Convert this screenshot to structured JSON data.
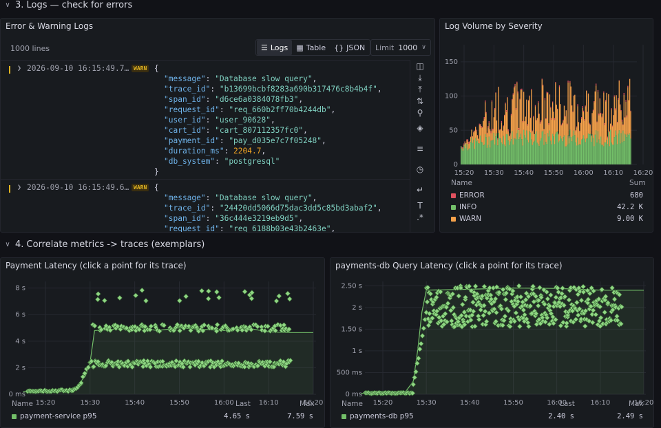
{
  "sections": {
    "logs_title": "3. Logs — check for errors",
    "correlate_title": "4. Correlate metrics -> traces (exemplars)"
  },
  "logs_panel": {
    "title": "Error & Warning Logs",
    "line_count": "1000 lines",
    "view_buttons": [
      {
        "label": "Logs",
        "icon": "logs-icon",
        "active": true
      },
      {
        "label": "Table",
        "icon": "table-icon",
        "active": false
      },
      {
        "label": "JSON",
        "icon": "json-icon",
        "active": false
      }
    ],
    "limit_label": "Limit",
    "limit_value": "1000",
    "entries": [
      {
        "timestamp": "2026-09-10 16:15:49.7…",
        "level": "WARN",
        "open_brace": "{",
        "close_brace": "}",
        "fields": [
          {
            "key": "\"message\"",
            "value": "\"Database slow query\"",
            "kind": "s"
          },
          {
            "key": "\"trace_id\"",
            "value": "\"b13699bcbf8283a690b317476c8b4b4f\"",
            "kind": "s"
          },
          {
            "key": "\"span_id\"",
            "value": "\"d6ce6a0384078fb3\"",
            "kind": "s"
          },
          {
            "key": "\"request_id\"",
            "value": "\"req_660b2ff70b4244db\"",
            "kind": "s"
          },
          {
            "key": "\"user_id\"",
            "value": "\"user_90628\"",
            "kind": "s"
          },
          {
            "key": "\"cart_id\"",
            "value": "\"cart_807112357fc0\"",
            "kind": "s"
          },
          {
            "key": "\"payment_id\"",
            "value": "\"pay_d035e7c7f05248\"",
            "kind": "s"
          },
          {
            "key": "\"duration_ms\"",
            "value": "2204.7",
            "kind": "n"
          },
          {
            "key": "\"db_system\"",
            "value": "\"postgresql\"",
            "kind": "s"
          }
        ]
      },
      {
        "timestamp": "2026-09-10 16:15:49.6…",
        "level": "WARN",
        "open_brace": "{",
        "close_brace": "",
        "fields": [
          {
            "key": "\"message\"",
            "value": "\"Database slow query\"",
            "kind": "s"
          },
          {
            "key": "\"trace_id\"",
            "value": "\"24420dd5066d75dac3dd5c85bd3abaf2\"",
            "kind": "s"
          },
          {
            "key": "\"span_id\"",
            "value": "\"36c444e3219eb9d5\"",
            "kind": "s"
          },
          {
            "key": "\"request_id\"",
            "value": "\"req_6188b03e43b2463e\"",
            "kind": "s"
          }
        ]
      }
    ],
    "side_icons": [
      "collapse-sidebar-icon",
      "download-icon",
      "scroll-top-icon",
      "sort-icon",
      "search-icon",
      "layers-icon",
      "filter-icon",
      "clock-icon",
      "wrap-lines-icon",
      "text-icon",
      "regex-icon"
    ]
  },
  "volume_panel": {
    "title": "Log Volume by Severity",
    "legend_header_name": "Name",
    "legend_header_value": "Sum",
    "legend": [
      {
        "name": "ERROR",
        "value": "680",
        "color": "#e0515f"
      },
      {
        "name": "INFO",
        "value": "42.2 K",
        "color": "#73bf69"
      },
      {
        "name": "WARN",
        "value": "9.00 K",
        "color": "#f5a14a"
      }
    ],
    "chart_data": {
      "type": "bar",
      "stacked": true,
      "title": "Log Volume by Severity",
      "x_ticks": [
        "15:20",
        "15:30",
        "15:40",
        "15:50",
        "16:00",
        "16:10",
        "16:20"
      ],
      "y_ticks": [
        "0",
        "50",
        "100",
        "150"
      ],
      "ylim": [
        0,
        175
      ],
      "series": [
        {
          "name": "INFO",
          "color": "#73bf69",
          "approx_level": 35
        },
        {
          "name": "WARN",
          "color": "#f5a14a",
          "approx_level": 40
        },
        {
          "name": "ERROR",
          "color": "#e0515f",
          "approx_level": 3
        }
      ],
      "x_range": [
        "15:15",
        "16:17"
      ],
      "peak": 165
    }
  },
  "payment_panel": {
    "title": "Payment Latency (click a point for its trace)",
    "legend_header_name": "Name",
    "legend_header_last": "Last",
    "legend_header_max": "Max",
    "legend": [
      {
        "name": "payment-service p95",
        "last": "4.65 s",
        "max": "7.59 s",
        "color": "#73bf69"
      }
    ],
    "chart_data": {
      "type": "line",
      "title": "Payment Latency (click a point for its trace)",
      "x_ticks": [
        "15:20",
        "15:30",
        "15:40",
        "15:50",
        "16:00",
        "16:10",
        "16:20"
      ],
      "y_ticks": [
        "0 ms",
        "2 s",
        "4 s",
        "6 s",
        "8 s"
      ],
      "ylim": [
        0,
        8.5
      ],
      "series": [
        {
          "name": "payment-service p95",
          "color": "#73bf69"
        }
      ],
      "line_points": [
        [
          "15:15",
          0.2
        ],
        [
          "15:25",
          0.3
        ],
        [
          "15:27",
          0.6
        ],
        [
          "15:29",
          1.4
        ],
        [
          "15:30",
          2.4
        ],
        [
          "15:31",
          4.8
        ],
        [
          "15:35",
          4.9
        ],
        [
          "15:40",
          5.1
        ],
        [
          "15:45",
          4.8
        ],
        [
          "15:50",
          5.0
        ],
        [
          "15:55",
          4.9
        ],
        [
          "16:00",
          4.8
        ],
        [
          "16:05",
          5.0
        ],
        [
          "16:10",
          4.7
        ],
        [
          "16:15",
          4.65
        ],
        [
          "16:20",
          4.65
        ]
      ],
      "exemplar_bands_s": [
        0.2,
        2.3,
        5.0,
        7.6
      ],
      "last": 4.65,
      "max": 7.59
    }
  },
  "db_panel": {
    "title": "payments-db Query Latency (click a point for its trace)",
    "legend_header_name": "Name",
    "legend_header_last": "Last",
    "legend_header_max": "Max",
    "legend": [
      {
        "name": "payments-db p95",
        "last": "2.40 s",
        "max": "2.49 s",
        "color": "#73bf69"
      }
    ],
    "chart_data": {
      "type": "line",
      "title": "payments-db Query Latency (click a point for its trace)",
      "x_ticks": [
        "15:20",
        "15:30",
        "15:40",
        "15:50",
        "16:00",
        "16:10",
        "16:20"
      ],
      "y_ticks": [
        "0 ms",
        "500 ms",
        "1 s",
        "1.50 s",
        "2 s",
        "2.50 s"
      ],
      "ylim": [
        0,
        2.6
      ],
      "series": [
        {
          "name": "payments-db p95",
          "color": "#73bf69"
        }
      ],
      "line_points": [
        [
          "15:15",
          0.02
        ],
        [
          "15:25",
          0.03
        ],
        [
          "15:27",
          0.3
        ],
        [
          "15:28",
          1.0
        ],
        [
          "15:29",
          1.9
        ],
        [
          "15:30",
          2.4
        ],
        [
          "15:40",
          2.42
        ],
        [
          "15:50",
          2.45
        ],
        [
          "16:00",
          2.44
        ],
        [
          "16:10",
          2.4
        ],
        [
          "16:20",
          2.4
        ]
      ],
      "exemplar_range_s": [
        1.55,
        2.5
      ],
      "last": 2.4,
      "max": 2.49
    }
  }
}
